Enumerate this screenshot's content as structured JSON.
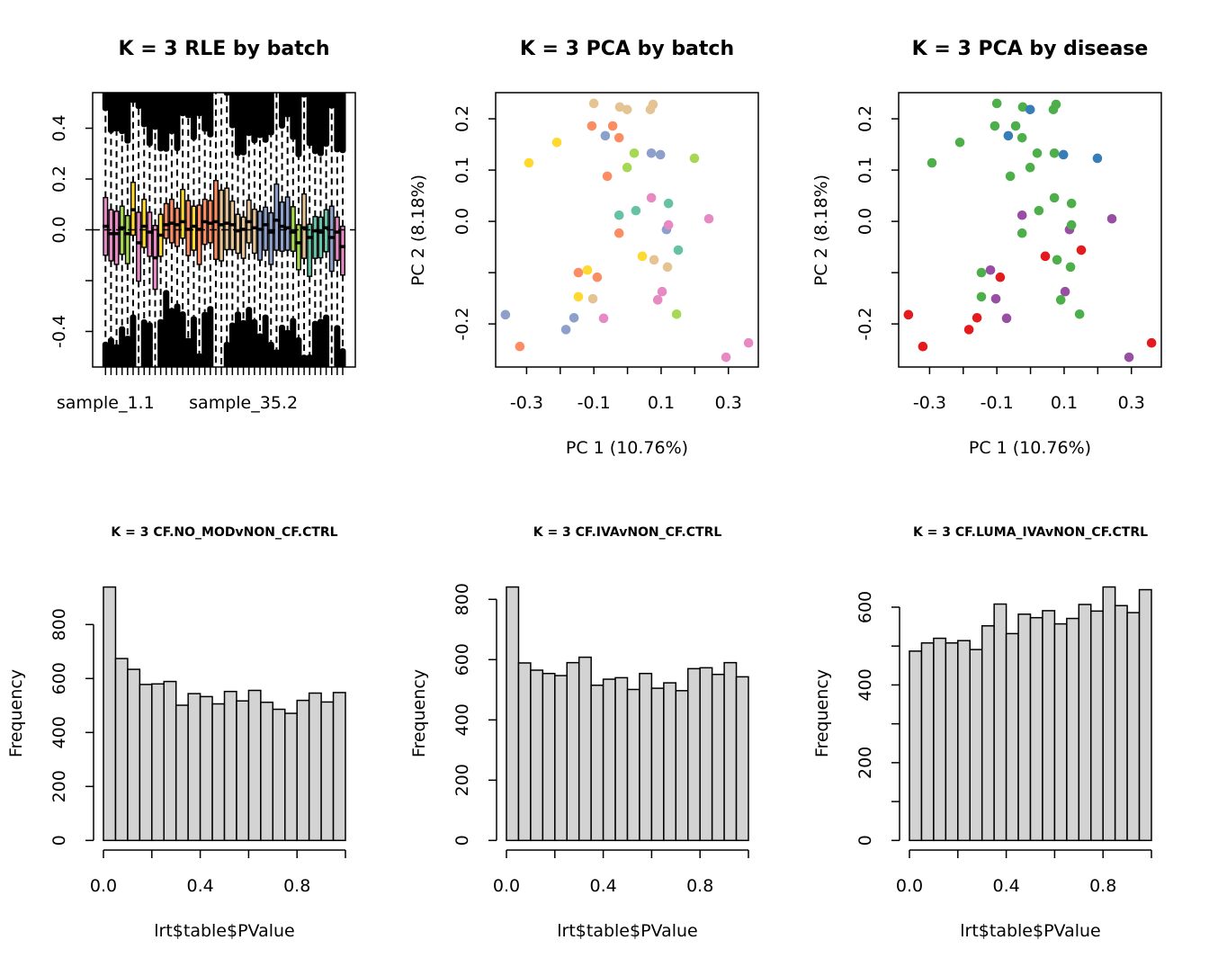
{
  "chart_data": [
    {
      "type": "box",
      "title": "K = 3 RLE by batch",
      "ylim": [
        -0.54,
        0.54
      ],
      "yticks": [
        -0.4,
        -0.2,
        0.0,
        0.2,
        0.4
      ],
      "ytick_labels": [
        "-0.4",
        "",
        "0.0",
        "0.2",
        "0.4"
      ],
      "xtick_labels": [
        {
          "sample": 1,
          "label": "sample_1.1"
        },
        {
          "sample": 26,
          "label": "sample_35.2"
        }
      ],
      "reference_line": 0,
      "samples": [
        {
          "color": "#E78AC3",
          "q3": 0.127,
          "median": 0.014,
          "q1": -0.1
        },
        {
          "color": "#E78AC3",
          "q3": 0.079,
          "median": -0.015,
          "q1": -0.122
        },
        {
          "color": "#E78AC3",
          "q3": 0.073,
          "median": -0.015,
          "q1": -0.136
        },
        {
          "color": "#A6D854",
          "q3": 0.093,
          "median": 0.008,
          "q1": -0.096
        },
        {
          "color": "#A6D854",
          "q3": 0.056,
          "median": -0.015,
          "q1": -0.133
        },
        {
          "color": "#FFD92F",
          "q3": 0.187,
          "median": 0.079,
          "q1": -0.021
        },
        {
          "color": "#E78AC3",
          "q3": 0.069,
          "median": -0.051,
          "q1": -0.202
        },
        {
          "color": "#FFD92F",
          "q3": 0.12,
          "median": 0.014,
          "q1": -0.069
        },
        {
          "color": "#E78AC3",
          "q3": 0.069,
          "median": -0.009,
          "q1": -0.104
        },
        {
          "color": "#E78AC3",
          "q3": 0.017,
          "median": -0.11,
          "q1": -0.234
        },
        {
          "color": "#FFD92F",
          "q3": 0.061,
          "median": -0.021,
          "q1": -0.104
        },
        {
          "color": "#FC8D62",
          "q3": 0.103,
          "median": 0.02,
          "q1": -0.033
        },
        {
          "color": "#FC8D62",
          "q3": 0.12,
          "median": 0.026,
          "q1": -0.051
        },
        {
          "color": "#FC8D62",
          "q3": 0.085,
          "median": 0.02,
          "q1": -0.065
        },
        {
          "color": "#FFD92F",
          "q3": 0.159,
          "median": 0.032,
          "q1": -0.033
        },
        {
          "color": "#FC8D62",
          "q3": 0.115,
          "median": 0.002,
          "q1": -0.101
        },
        {
          "color": "#FFD92F",
          "q3": 0.093,
          "median": 0.014,
          "q1": -0.08
        },
        {
          "color": "#FC8D62",
          "q3": 0.097,
          "median": 0.002,
          "q1": -0.136
        },
        {
          "color": "#FC8D62",
          "q3": 0.12,
          "median": 0.032,
          "q1": -0.057
        },
        {
          "color": "#FC8D62",
          "q3": 0.115,
          "median": 0.026,
          "q1": -0.051
        },
        {
          "color": "#FC8D62",
          "q3": 0.194,
          "median": 0.032,
          "q1": -0.116
        },
        {
          "color": "#E5C494",
          "q3": 0.156,
          "median": 0.02,
          "q1": -0.122
        },
        {
          "color": "#E5C494",
          "q3": 0.164,
          "median": 0.026,
          "q1": -0.078
        },
        {
          "color": "#E5C494",
          "q3": 0.113,
          "median": 0.02,
          "q1": -0.078
        },
        {
          "color": "#E5C494",
          "q3": 0.061,
          "median": -0.004,
          "q1": -0.092
        },
        {
          "color": "#E5C494",
          "q3": 0.05,
          "median": 0.002,
          "q1": -0.112
        },
        {
          "color": "#E5C494",
          "q3": 0.117,
          "median": 0.032,
          "q1": -0.051
        },
        {
          "color": "#E5C494",
          "q3": 0.081,
          "median": 0.008,
          "q1": -0.092
        },
        {
          "color": "#8DA0CB",
          "q3": 0.073,
          "median": 0.002,
          "q1": -0.119
        },
        {
          "color": "#8DA0CB",
          "q3": 0.089,
          "median": 0.02,
          "q1": -0.08
        },
        {
          "color": "#8DA0CB",
          "q3": 0.067,
          "median": -0.009,
          "q1": -0.136
        },
        {
          "color": "#8DA0CB",
          "q3": 0.18,
          "median": 0.038,
          "q1": -0.08
        },
        {
          "color": "#8DA0CB",
          "q3": 0.109,
          "median": 0.014,
          "q1": -0.084
        },
        {
          "color": "#8DA0CB",
          "q3": 0.129,
          "median": 0.008,
          "q1": -0.08
        },
        {
          "color": "#A6D854",
          "q3": 0.091,
          "median": -0.009,
          "q1": -0.084
        },
        {
          "color": "#A6D854",
          "q3": 0.02,
          "median": -0.051,
          "q1": -0.157
        },
        {
          "color": "#E5C494",
          "q3": 0.141,
          "median": 0.008,
          "q1": -0.112
        },
        {
          "color": "#66C2A5",
          "q3": 0.022,
          "median": -0.03,
          "q1": -0.183
        },
        {
          "color": "#66C2A5",
          "q3": 0.052,
          "median": -0.004,
          "q1": -0.112
        },
        {
          "color": "#66C2A5",
          "q3": 0.05,
          "median": -0.009,
          "q1": -0.11
        },
        {
          "color": "#66C2A5",
          "q3": 0.079,
          "median": 0.008,
          "q1": -0.086
        },
        {
          "color": "#8DA0CB",
          "q3": 0.093,
          "median": -0.03,
          "q1": -0.163
        },
        {
          "color": "#E78AC3",
          "q3": 0.05,
          "median": -0.009,
          "q1": -0.12
        },
        {
          "color": "#E78AC3",
          "q3": 0.014,
          "median": -0.066,
          "q1": -0.178
        }
      ]
    },
    {
      "type": "scatter",
      "title": "K = 3 PCA by batch",
      "xlabel": "PC 1 (10.76%)",
      "ylabel": "PC 2 (8.18%)",
      "xlim": [
        -0.392,
        0.389
      ],
      "ylim": [
        -0.284,
        0.251
      ],
      "xticks": [
        -0.3,
        -0.2,
        -0.1,
        0.0,
        0.1,
        0.2,
        0.3
      ],
      "xtick_labels": [
        "-0.3",
        "",
        "-0.1",
        "",
        "0.1",
        "",
        "0.3"
      ],
      "yticks": [
        -0.2,
        -0.1,
        0.0,
        0.1,
        0.2
      ],
      "ytick_labels": [
        "-0.2",
        "",
        "0.0",
        "0.1",
        "0.2"
      ],
      "points": [
        {
          "x": -0.1,
          "y": 0.23,
          "color": "#E5C494"
        },
        {
          "x": -0.023,
          "y": 0.223,
          "color": "#E5C494"
        },
        {
          "x": -0.001,
          "y": 0.218,
          "color": "#E5C494"
        },
        {
          "x": 0.068,
          "y": 0.218,
          "color": "#E5C494"
        },
        {
          "x": 0.076,
          "y": 0.228,
          "color": "#E5C494"
        },
        {
          "x": 0.079,
          "y": -0.075,
          "color": "#E5C494"
        },
        {
          "x": 0.119,
          "y": -0.089,
          "color": "#E5C494"
        },
        {
          "x": -0.103,
          "y": -0.151,
          "color": "#E5C494"
        },
        {
          "x": -0.106,
          "y": 0.186,
          "color": "#FC8D62"
        },
        {
          "x": -0.044,
          "y": 0.186,
          "color": "#FC8D62"
        },
        {
          "x": -0.025,
          "y": 0.163,
          "color": "#FC8D62"
        },
        {
          "x": -0.06,
          "y": 0.088,
          "color": "#FC8D62"
        },
        {
          "x": -0.025,
          "y": -0.023,
          "color": "#FC8D62"
        },
        {
          "x": -0.146,
          "y": -0.1,
          "color": "#FC8D62"
        },
        {
          "x": -0.09,
          "y": -0.109,
          "color": "#FC8D62"
        },
        {
          "x": -0.32,
          "y": -0.244,
          "color": "#FC8D62"
        },
        {
          "x": -0.066,
          "y": 0.167,
          "color": "#8DA0CB"
        },
        {
          "x": 0.071,
          "y": 0.133,
          "color": "#8DA0CB"
        },
        {
          "x": 0.098,
          "y": 0.13,
          "color": "#8DA0CB"
        },
        {
          "x": 0.116,
          "y": -0.016,
          "color": "#8DA0CB"
        },
        {
          "x": -0.363,
          "y": -0.182,
          "color": "#8DA0CB"
        },
        {
          "x": -0.159,
          "y": -0.188,
          "color": "#8DA0CB"
        },
        {
          "x": -0.183,
          "y": -0.211,
          "color": "#8DA0CB"
        },
        {
          "x": -0.21,
          "y": 0.154,
          "color": "#FFD92F"
        },
        {
          "x": -0.293,
          "y": 0.114,
          "color": "#FFD92F"
        },
        {
          "x": 0.044,
          "y": -0.068,
          "color": "#FFD92F"
        },
        {
          "x": -0.119,
          "y": -0.095,
          "color": "#FFD92F"
        },
        {
          "x": -0.146,
          "y": -0.147,
          "color": "#FFD92F"
        },
        {
          "x": 0.02,
          "y": 0.133,
          "color": "#A6D854"
        },
        {
          "x": -0.001,
          "y": 0.105,
          "color": "#A6D854"
        },
        {
          "x": 0.199,
          "y": 0.123,
          "color": "#A6D854"
        },
        {
          "x": 0.146,
          "y": -0.181,
          "color": "#A6D854"
        },
        {
          "x": 0.122,
          "y": 0.035,
          "color": "#66C2A5"
        },
        {
          "x": 0.025,
          "y": 0.021,
          "color": "#66C2A5"
        },
        {
          "x": -0.025,
          "y": 0.012,
          "color": "#66C2A5"
        },
        {
          "x": 0.151,
          "y": -0.056,
          "color": "#66C2A5"
        },
        {
          "x": 0.071,
          "y": 0.046,
          "color": "#E78AC3"
        },
        {
          "x": 0.122,
          "y": -0.007,
          "color": "#E78AC3"
        },
        {
          "x": 0.242,
          "y": 0.005,
          "color": "#E78AC3"
        },
        {
          "x": 0.103,
          "y": -0.137,
          "color": "#E78AC3"
        },
        {
          "x": 0.09,
          "y": -0.153,
          "color": "#E78AC3"
        },
        {
          "x": -0.071,
          "y": -0.189,
          "color": "#E78AC3"
        },
        {
          "x": 0.36,
          "y": -0.237,
          "color": "#E78AC3"
        },
        {
          "x": 0.293,
          "y": -0.265,
          "color": "#E78AC3"
        }
      ]
    },
    {
      "type": "scatter",
      "title": "K = 3 PCA by disease",
      "xlabel": "PC 1 (10.76%)",
      "ylabel": "PC 2 (8.18%)",
      "xlim": [
        -0.392,
        0.389
      ],
      "ylim": [
        -0.284,
        0.251
      ],
      "xticks": [
        -0.3,
        -0.2,
        -0.1,
        0.0,
        0.1,
        0.2,
        0.3
      ],
      "xtick_labels": [
        "-0.3",
        "",
        "-0.1",
        "",
        "0.1",
        "",
        "0.3"
      ],
      "yticks": [
        -0.2,
        -0.1,
        0.0,
        0.1,
        0.2
      ],
      "ytick_labels": [
        "-0.2",
        "",
        "0.0",
        "0.1",
        "0.2"
      ],
      "points": [
        {
          "x": -0.1,
          "y": 0.23,
          "color": "#4DAF4A"
        },
        {
          "x": -0.023,
          "y": 0.223,
          "color": "#4DAF4A"
        },
        {
          "x": -0.001,
          "y": 0.218,
          "color": "#377EB8"
        },
        {
          "x": 0.068,
          "y": 0.218,
          "color": "#4DAF4A"
        },
        {
          "x": 0.076,
          "y": 0.228,
          "color": "#4DAF4A"
        },
        {
          "x": 0.079,
          "y": -0.075,
          "color": "#4DAF4A"
        },
        {
          "x": 0.119,
          "y": -0.089,
          "color": "#4DAF4A"
        },
        {
          "x": -0.103,
          "y": -0.151,
          "color": "#984EA3"
        },
        {
          "x": -0.106,
          "y": 0.186,
          "color": "#4DAF4A"
        },
        {
          "x": -0.044,
          "y": 0.186,
          "color": "#4DAF4A"
        },
        {
          "x": -0.025,
          "y": 0.163,
          "color": "#4DAF4A"
        },
        {
          "x": -0.06,
          "y": 0.088,
          "color": "#4DAF4A"
        },
        {
          "x": -0.025,
          "y": -0.023,
          "color": "#4DAF4A"
        },
        {
          "x": -0.146,
          "y": -0.1,
          "color": "#4DAF4A"
        },
        {
          "x": -0.09,
          "y": -0.109,
          "color": "#E41A1C"
        },
        {
          "x": -0.32,
          "y": -0.244,
          "color": "#E41A1C"
        },
        {
          "x": -0.066,
          "y": 0.167,
          "color": "#377EB8"
        },
        {
          "x": 0.071,
          "y": 0.133,
          "color": "#4DAF4A"
        },
        {
          "x": 0.098,
          "y": 0.13,
          "color": "#377EB8"
        },
        {
          "x": 0.116,
          "y": -0.016,
          "color": "#984EA3"
        },
        {
          "x": -0.363,
          "y": -0.182,
          "color": "#E41A1C"
        },
        {
          "x": -0.159,
          "y": -0.188,
          "color": "#E41A1C"
        },
        {
          "x": -0.183,
          "y": -0.211,
          "color": "#E41A1C"
        },
        {
          "x": -0.21,
          "y": 0.154,
          "color": "#4DAF4A"
        },
        {
          "x": -0.293,
          "y": 0.114,
          "color": "#4DAF4A"
        },
        {
          "x": 0.044,
          "y": -0.068,
          "color": "#E41A1C"
        },
        {
          "x": -0.119,
          "y": -0.095,
          "color": "#984EA3"
        },
        {
          "x": -0.146,
          "y": -0.147,
          "color": "#4DAF4A"
        },
        {
          "x": 0.02,
          "y": 0.133,
          "color": "#4DAF4A"
        },
        {
          "x": -0.001,
          "y": 0.105,
          "color": "#4DAF4A"
        },
        {
          "x": 0.199,
          "y": 0.123,
          "color": "#377EB8"
        },
        {
          "x": 0.146,
          "y": -0.181,
          "color": "#4DAF4A"
        },
        {
          "x": 0.122,
          "y": 0.035,
          "color": "#4DAF4A"
        },
        {
          "x": 0.025,
          "y": 0.021,
          "color": "#4DAF4A"
        },
        {
          "x": -0.025,
          "y": 0.012,
          "color": "#984EA3"
        },
        {
          "x": 0.151,
          "y": -0.056,
          "color": "#E41A1C"
        },
        {
          "x": 0.071,
          "y": 0.046,
          "color": "#4DAF4A"
        },
        {
          "x": 0.122,
          "y": -0.007,
          "color": "#4DAF4A"
        },
        {
          "x": 0.242,
          "y": 0.005,
          "color": "#984EA3"
        },
        {
          "x": 0.103,
          "y": -0.137,
          "color": "#984EA3"
        },
        {
          "x": 0.09,
          "y": -0.153,
          "color": "#4DAF4A"
        },
        {
          "x": -0.071,
          "y": -0.189,
          "color": "#984EA3"
        },
        {
          "x": 0.36,
          "y": -0.237,
          "color": "#E41A1C"
        },
        {
          "x": 0.293,
          "y": -0.265,
          "color": "#984EA3"
        }
      ]
    },
    {
      "type": "bar",
      "subtype": "histogram",
      "title": "K = 3 CF.NO_MODvNON_CF.CTRL",
      "xlabel": "lrt$table$PValue",
      "ylabel": "Frequency",
      "bin_width": 0.05,
      "xlim": [
        0,
        1
      ],
      "xticks": [
        0.0,
        0.2,
        0.4,
        0.6,
        0.8,
        1.0
      ],
      "xtick_labels": [
        "0.0",
        "",
        "0.4",
        "",
        "0.8",
        ""
      ],
      "yticks": [
        0,
        200,
        400,
        600,
        800
      ],
      "ytick_labels": [
        "0",
        "200",
        "400",
        "600",
        "800"
      ],
      "counts": [
        939,
        674,
        634,
        578,
        580,
        589,
        501,
        544,
        533,
        506,
        552,
        517,
        556,
        512,
        486,
        471,
        519,
        546,
        513,
        548
      ]
    },
    {
      "type": "bar",
      "subtype": "histogram",
      "title": "K = 3 CF.IVAvNON_CF.CTRL",
      "xlabel": "lrt$table$PValue",
      "ylabel": "Frequency",
      "bin_width": 0.05,
      "xlim": [
        0,
        1
      ],
      "xticks": [
        0.0,
        0.2,
        0.4,
        0.6,
        0.8,
        1.0
      ],
      "xtick_labels": [
        "0.0",
        "",
        "0.4",
        "",
        "0.8",
        ""
      ],
      "yticks": [
        0,
        200,
        400,
        600,
        800
      ],
      "ytick_labels": [
        "0",
        "200",
        "400",
        "600",
        "800"
      ],
      "counts": [
        841,
        589,
        565,
        554,
        547,
        590,
        608,
        515,
        535,
        540,
        501,
        554,
        505,
        523,
        497,
        570,
        573,
        551,
        590,
        543
      ]
    },
    {
      "type": "bar",
      "subtype": "histogram",
      "title": "K = 3 CF.LUMA_IVAvNON_CF.CTRL",
      "xlabel": "lrt$table$PValue",
      "ylabel": "Frequency",
      "bin_width": 0.05,
      "xlim": [
        0,
        1
      ],
      "xticks": [
        0.0,
        0.2,
        0.4,
        0.6,
        0.8,
        1.0
      ],
      "xtick_labels": [
        "0.0",
        "",
        "0.4",
        "",
        "0.8",
        ""
      ],
      "yticks": [
        0,
        100,
        200,
        300,
        400,
        500,
        600
      ],
      "ytick_labels": [
        "0",
        "",
        "200",
        "",
        "400",
        "",
        "600"
      ],
      "counts": [
        487,
        508,
        520,
        508,
        514,
        491,
        552,
        608,
        532,
        582,
        573,
        591,
        557,
        571,
        607,
        590,
        652,
        604,
        586,
        645
      ]
    }
  ]
}
